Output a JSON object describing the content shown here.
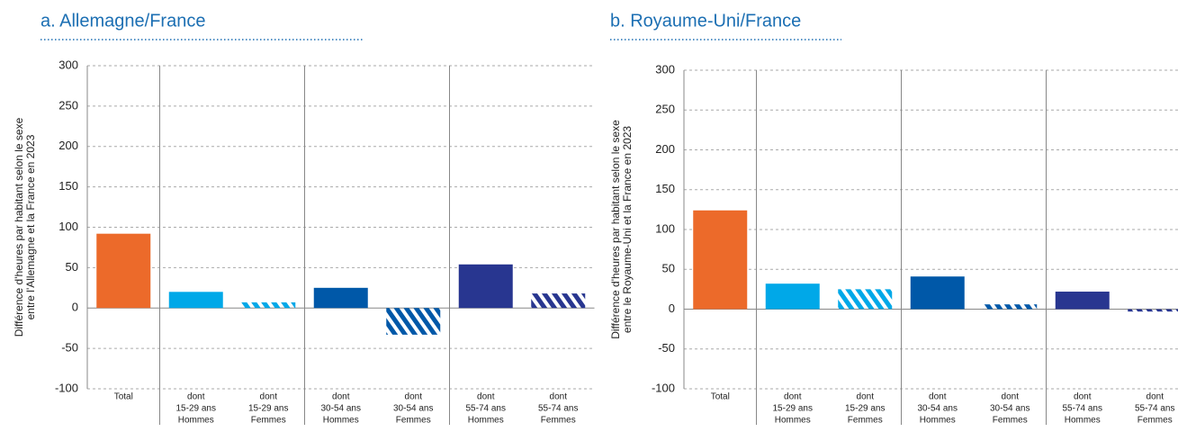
{
  "chart_data": [
    {
      "type": "bar",
      "title": "a. Allemagne/France",
      "ylabel": [
        "Différence d'heures par habitant selon le sexe",
        "entre l'Allemagne et la France en 2023"
      ],
      "categories": [
        [
          "Total"
        ],
        [
          "dont",
          "15-29 ans",
          "Hommes"
        ],
        [
          "dont",
          "15-29 ans",
          "Femmes"
        ],
        [
          "dont",
          "30-54 ans",
          "Hommes"
        ],
        [
          "dont",
          "30-54 ans",
          "Femmes"
        ],
        [
          "dont",
          "55-74 ans",
          "Hommes"
        ],
        [
          "dont",
          "55-74 ans",
          "Femmes"
        ]
      ],
      "values": [
        92,
        20,
        7,
        25,
        -33,
        54,
        18
      ],
      "colors": [
        "#ec6a2a",
        "#00a8e8",
        "#00a8e8",
        "#0058a8",
        "#0058a8",
        "#283690",
        "#283690"
      ],
      "hatched": [
        false,
        false,
        true,
        false,
        true,
        false,
        true
      ],
      "ylim": [
        -100,
        300
      ],
      "yticks": [
        -100,
        -50,
        0,
        50,
        100,
        150,
        200,
        250,
        300
      ],
      "grid": true
    },
    {
      "type": "bar",
      "title": "b. Royaume-Uni/France",
      "ylabel": [
        "Différence d'heures par habitant selon le sexe",
        "entre le Royaume-Uni et la France en 2023"
      ],
      "categories": [
        [
          "Total"
        ],
        [
          "dont",
          "15-29 ans",
          "Hommes"
        ],
        [
          "dont",
          "15-29 ans",
          "Femmes"
        ],
        [
          "dont",
          "30-54 ans",
          "Hommes"
        ],
        [
          "dont",
          "30-54 ans",
          "Femmes"
        ],
        [
          "dont",
          "55-74 ans",
          "Hommes"
        ],
        [
          "dont",
          "55-74 ans",
          "Femmes"
        ]
      ],
      "values": [
        124,
        32,
        25,
        41,
        6,
        22,
        -3
      ],
      "colors": [
        "#ec6a2a",
        "#00a8e8",
        "#00a8e8",
        "#0058a8",
        "#0058a8",
        "#283690",
        "#283690"
      ],
      "hatched": [
        false,
        false,
        true,
        false,
        true,
        false,
        true
      ],
      "ylim": [
        -100,
        300
      ],
      "yticks": [
        -100,
        -50,
        0,
        50,
        100,
        150,
        200,
        250,
        300
      ],
      "grid": true
    }
  ]
}
